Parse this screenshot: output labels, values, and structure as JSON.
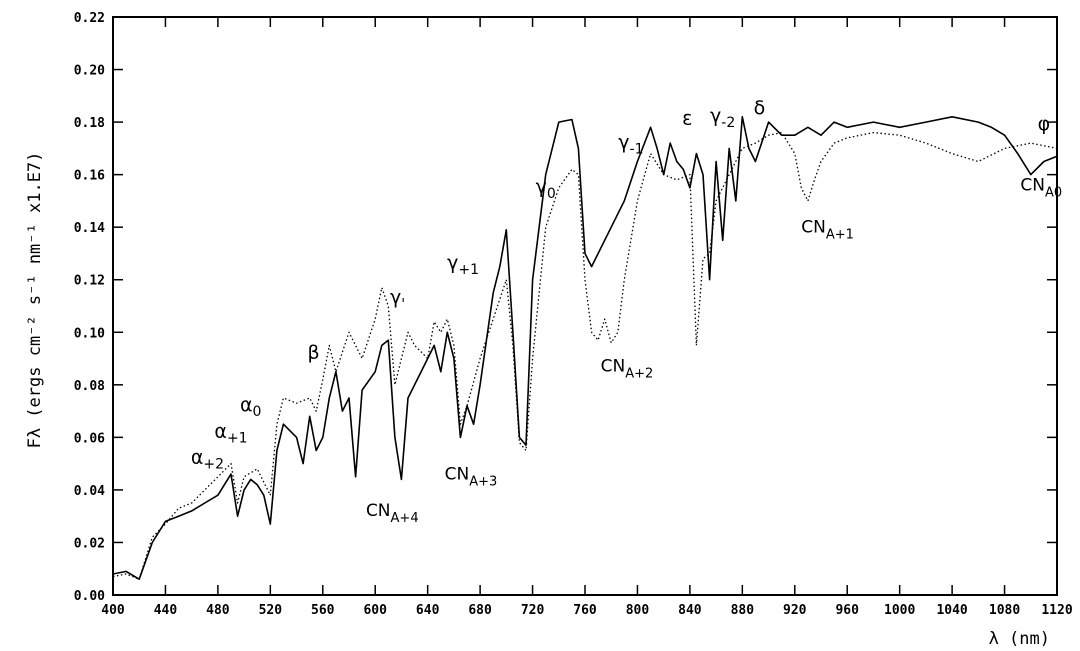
{
  "chart_data": {
    "type": "line",
    "xlabel": "λ (nm)",
    "ylabel": "Fλ (ergs cm⁻² s⁻¹ nm⁻¹ x1.E7)",
    "xlim": [
      400,
      1120
    ],
    "ylim": [
      0.0,
      0.22
    ],
    "x_ticks": [
      "400",
      "440",
      "480",
      "520",
      "560",
      "600",
      "640",
      "680",
      "720",
      "760",
      "800",
      "840",
      "880",
      "920",
      "960",
      "1000",
      "1040",
      "1080",
      "1120"
    ],
    "y_ticks": [
      "0.00",
      "0.02",
      "0.04",
      "0.06",
      "0.08",
      "0.10",
      "0.12",
      "0.14",
      "0.16",
      "0.18",
      "0.20",
      "0.22"
    ],
    "grid": false,
    "series": [
      {
        "style": "solid",
        "x": [
          400,
          410,
          420,
          430,
          440,
          450,
          460,
          470,
          480,
          490,
          495,
          500,
          505,
          510,
          515,
          520,
          525,
          530,
          540,
          545,
          550,
          555,
          560,
          565,
          570,
          575,
          580,
          585,
          590,
          600,
          605,
          610,
          615,
          620,
          625,
          630,
          640,
          645,
          650,
          655,
          660,
          665,
          670,
          675,
          680,
          690,
          695,
          700,
          705,
          710,
          715,
          720,
          730,
          740,
          750,
          755,
          760,
          765,
          770,
          780,
          790,
          800,
          810,
          815,
          820,
          825,
          830,
          835,
          840,
          845,
          850,
          855,
          860,
          865,
          870,
          875,
          880,
          885,
          890,
          900,
          910,
          920,
          930,
          940,
          950,
          960,
          980,
          1000,
          1020,
          1040,
          1060,
          1070,
          1080,
          1090,
          1100,
          1110,
          1120
        ],
        "y": [
          0.008,
          0.009,
          0.006,
          0.02,
          0.028,
          0.03,
          0.032,
          0.035,
          0.038,
          0.046,
          0.03,
          0.04,
          0.044,
          0.042,
          0.038,
          0.027,
          0.055,
          0.065,
          0.06,
          0.05,
          0.068,
          0.055,
          0.06,
          0.075,
          0.085,
          0.07,
          0.075,
          0.045,
          0.078,
          0.085,
          0.095,
          0.097,
          0.06,
          0.044,
          0.075,
          0.08,
          0.09,
          0.095,
          0.085,
          0.1,
          0.09,
          0.06,
          0.072,
          0.065,
          0.08,
          0.115,
          0.125,
          0.139,
          0.1,
          0.06,
          0.057,
          0.12,
          0.16,
          0.18,
          0.181,
          0.17,
          0.13,
          0.125,
          0.13,
          0.14,
          0.15,
          0.165,
          0.178,
          0.17,
          0.16,
          0.172,
          0.165,
          0.162,
          0.155,
          0.168,
          0.16,
          0.12,
          0.165,
          0.135,
          0.17,
          0.15,
          0.182,
          0.17,
          0.165,
          0.18,
          0.175,
          0.175,
          0.178,
          0.175,
          0.18,
          0.178,
          0.18,
          0.178,
          0.18,
          0.182,
          0.18,
          0.178,
          0.175,
          0.168,
          0.16,
          0.165,
          0.167
        ]
      },
      {
        "style": "dotted",
        "x": [
          400,
          410,
          420,
          430,
          440,
          450,
          460,
          470,
          480,
          490,
          495,
          500,
          510,
          520,
          525,
          530,
          540,
          550,
          555,
          560,
          565,
          570,
          580,
          590,
          600,
          605,
          610,
          615,
          620,
          625,
          630,
          640,
          645,
          650,
          655,
          660,
          665,
          670,
          680,
          690,
          700,
          705,
          710,
          715,
          720,
          730,
          740,
          750,
          755,
          760,
          765,
          770,
          775,
          780,
          785,
          790,
          800,
          810,
          820,
          830,
          840,
          845,
          850,
          855,
          860,
          870,
          880,
          890,
          900,
          910,
          920,
          925,
          930,
          935,
          940,
          950,
          960,
          980,
          1000,
          1020,
          1040,
          1060,
          1080,
          1100,
          1120
        ],
        "y": [
          0.007,
          0.008,
          0.006,
          0.022,
          0.027,
          0.033,
          0.035,
          0.04,
          0.045,
          0.05,
          0.035,
          0.045,
          0.048,
          0.038,
          0.065,
          0.075,
          0.073,
          0.075,
          0.07,
          0.082,
          0.095,
          0.085,
          0.1,
          0.09,
          0.105,
          0.117,
          0.11,
          0.08,
          0.09,
          0.1,
          0.095,
          0.09,
          0.104,
          0.1,
          0.105,
          0.095,
          0.065,
          0.072,
          0.09,
          0.105,
          0.12,
          0.095,
          0.058,
          0.055,
          0.09,
          0.14,
          0.155,
          0.162,
          0.16,
          0.12,
          0.1,
          0.097,
          0.105,
          0.096,
          0.1,
          0.12,
          0.15,
          0.168,
          0.16,
          0.158,
          0.16,
          0.095,
          0.128,
          0.13,
          0.15,
          0.16,
          0.17,
          0.172,
          0.175,
          0.176,
          0.168,
          0.155,
          0.15,
          0.158,
          0.165,
          0.172,
          0.174,
          0.176,
          0.175,
          0.172,
          0.168,
          0.165,
          0.17,
          0.172,
          0.17
        ]
      }
    ],
    "annotations": [
      {
        "text": "α",
        "sub": "+2",
        "x": 472,
        "y": 0.05
      },
      {
        "text": "α",
        "sub": "+1",
        "x": 490,
        "y": 0.06
      },
      {
        "text": "α",
        "sub": "0",
        "x": 505,
        "y": 0.07
      },
      {
        "text": "β",
        "sub": "",
        "x": 553,
        "y": 0.09
      },
      {
        "text": "γ",
        "sub": "'",
        "x": 617,
        "y": 0.111
      },
      {
        "text": "γ",
        "sub": "+1",
        "x": 667,
        "y": 0.124
      },
      {
        "text": "γ",
        "sub": "0",
        "x": 730,
        "y": 0.153
      },
      {
        "text": "γ",
        "sub": "-1",
        "x": 795,
        "y": 0.17
      },
      {
        "text": "ε",
        "sub": "",
        "x": 838,
        "y": 0.179
      },
      {
        "text": "γ",
        "sub": "-2",
        "x": 865,
        "y": 0.18
      },
      {
        "text": "δ",
        "sub": "",
        "x": 893,
        "y": 0.183
      },
      {
        "text": "φ",
        "sub": "",
        "x": 1110,
        "y": 0.177
      },
      {
        "text": "CN",
        "sub": "A+4",
        "x": 613,
        "y": 0.03
      },
      {
        "text": "CN",
        "sub": "A+3",
        "x": 673,
        "y": 0.044
      },
      {
        "text": "CN",
        "sub": "A+2",
        "x": 792,
        "y": 0.085
      },
      {
        "text": "CN",
        "sub": "A+1",
        "x": 945,
        "y": 0.138
      },
      {
        "text": "CN",
        "sub": "A0",
        "x": 1108,
        "y": 0.154
      }
    ]
  }
}
